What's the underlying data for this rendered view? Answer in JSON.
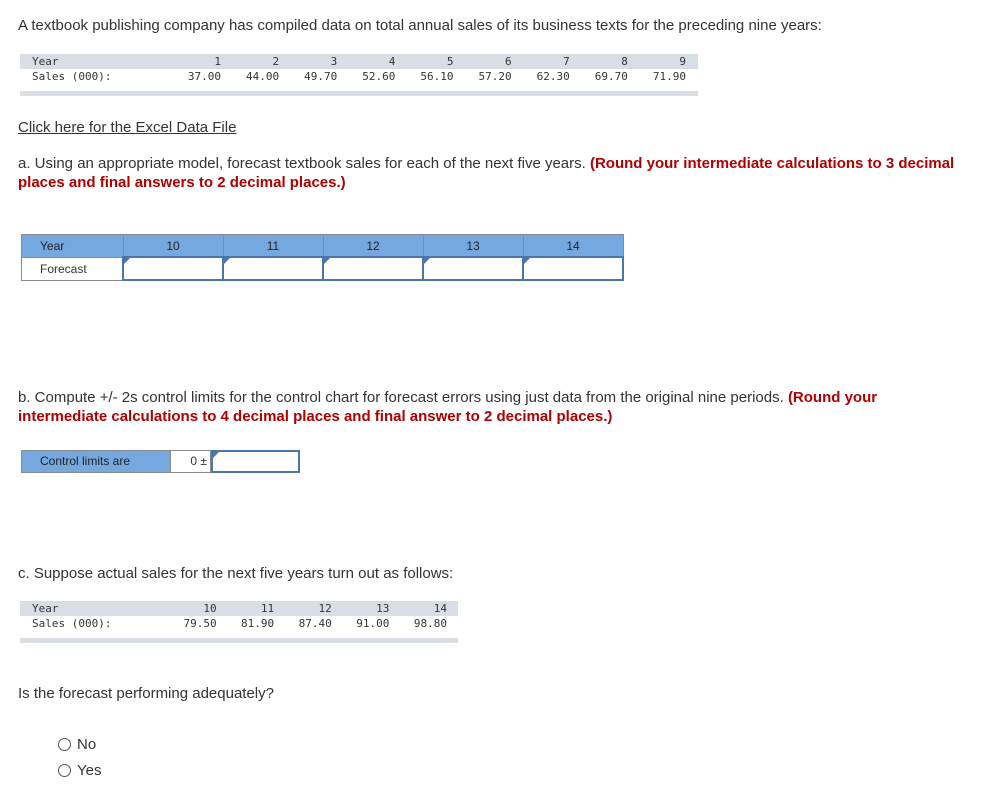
{
  "intro": "A textbook publishing company has compiled data on total annual sales of its business texts for the preceding nine years:",
  "table1": {
    "year_label": "Year",
    "sales_label": "Sales (000):",
    "years": [
      "1",
      "2",
      "3",
      "4",
      "5",
      "6",
      "7",
      "8",
      "9"
    ],
    "sales": [
      "37.00",
      "44.00",
      "49.70",
      "52.60",
      "56.10",
      "57.20",
      "62.30",
      "69.70",
      "71.90"
    ]
  },
  "excel_link": "Click here for the Excel Data File",
  "part_a": {
    "text": "a. Using an appropriate model, forecast textbook sales for each of the next five years. ",
    "note": "(Round your intermediate calculations to 3 decimal places and final answers to 2 decimal places.)"
  },
  "forecast_table": {
    "year_label": "Year",
    "forecast_label": "Forecast",
    "years": [
      "10",
      "11",
      "12",
      "13",
      "14"
    ],
    "values": [
      "",
      "",
      "",
      "",
      ""
    ]
  },
  "part_b": {
    "text": "b. Compute +/- 2s control limits for the control chart for forecast errors using just data from the original nine periods. ",
    "note": "(Round your intermediate calculations to 4 decimal places and final answer to 2 decimal places.)"
  },
  "control": {
    "label": "Control limits are",
    "prefix": "0 ±",
    "value": ""
  },
  "part_c": {
    "text": "c. Suppose actual sales for the next five years turn out as follows:"
  },
  "table2": {
    "year_label": "Year",
    "sales_label": "Sales (000):",
    "years": [
      "10",
      "11",
      "12",
      "13",
      "14"
    ],
    "sales": [
      "79.50",
      "81.90",
      "87.40",
      "91.00",
      "98.80"
    ]
  },
  "question": "Is the forecast performing adequately?",
  "options": [
    "No",
    "Yes"
  ]
}
